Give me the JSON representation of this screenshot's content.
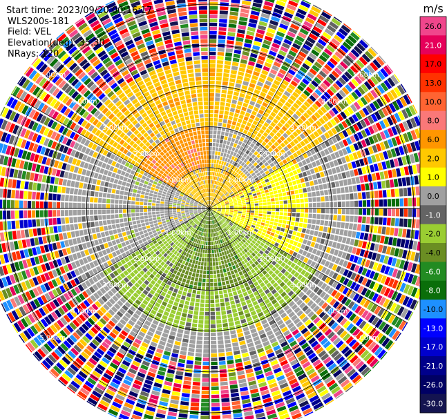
{
  "chart_data": {
    "type": "heatmap",
    "subtype": "radar-ppi",
    "info": {
      "start_time": "Start time: 2023/09/20 00:16:17",
      "instrument": "WLS200s-181",
      "field": "Field: VEL",
      "elevation": "Elevation(deg): 35.30",
      "nrays": "NRays: 120"
    },
    "range_rings": [
      {
        "range_km": 1,
        "label": "1.00km"
      },
      {
        "range_km": 2,
        "label": "2.00km"
      },
      {
        "range_km": 3,
        "label": "3.00km"
      },
      {
        "range_km": 4,
        "label": "4.00km"
      },
      {
        "range_km": 5,
        "label": "5.00km"
      }
    ],
    "max_range_km": 5.6,
    "n_rays": 120,
    "colorbar": {
      "unit": "m/s",
      "ticks": [
        "26.0",
        "21.0",
        "17.0",
        "13.0",
        "10.0",
        "8.0",
        "6.0",
        "2.0",
        "1.0",
        "0.0",
        "-1.0",
        "-2.0",
        "-4.0",
        "-6.0",
        "-8.0",
        "-10.0",
        "-13.0",
        "-17.0",
        "-21.0",
        "-26.0",
        "-30.0"
      ],
      "colors": [
        "#f0468c",
        "#e6005a",
        "#ff0000",
        "#ff3200",
        "#ff6432",
        "#fa7878",
        "#ff9600",
        "#ffc800",
        "#ffff00",
        "#a0a0a0",
        "#646464",
        "#9acd32",
        "#6b8e23",
        "#228b22",
        "#0a6e0a",
        "#1e90ff",
        "#0000ff",
        "#0000cd",
        "#00008b",
        "#000064",
        "#141450"
      ]
    },
    "sectors": [
      {
        "az_from": 300,
        "az_to": 420,
        "r_from_km": 0.0,
        "r_to_km": 1.2,
        "value": 1.5
      },
      {
        "az_from": 300,
        "az_to": 360,
        "r_from_km": 1.0,
        "r_to_km": 2.6,
        "value": 5.0
      },
      {
        "az_from": 300,
        "az_to": 420,
        "r_from_km": 2.0,
        "r_to_km": 3.6,
        "value": 1.5
      },
      {
        "az_from": 60,
        "az_to": 120,
        "r_from_km": 0.0,
        "r_to_km": 2.4,
        "value": 0.5
      },
      {
        "az_from": 240,
        "az_to": 300,
        "r_from_km": 0.0,
        "r_to_km": 2.5,
        "value": -0.5
      },
      {
        "az_from": 120,
        "az_to": 240,
        "r_from_km": 0.0,
        "r_to_km": 3.0,
        "value": -3.0
      },
      {
        "az_from": 150,
        "az_to": 210,
        "r_from_km": 0.0,
        "r_to_km": 2.0,
        "value": -5.0
      },
      {
        "az_from": 0,
        "az_to": 360,
        "r_from_km": 3.6,
        "r_to_km": 5.6,
        "value": null
      }
    ]
  }
}
